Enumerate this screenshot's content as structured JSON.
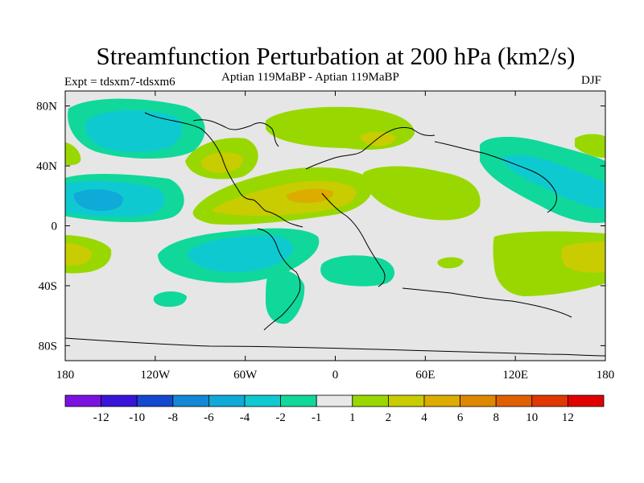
{
  "header": {
    "title": "Streamfunction Perturbation at 200 hPa (km2/s)",
    "experiment": "Expt = tdsxm7-tdsxm6",
    "period": "Aptian   119MaBP - Aptian   119MaBP",
    "season": "DJF"
  },
  "map": {
    "projection": "cylindrical equidistant",
    "lon_range": [
      -180,
      180
    ],
    "lat_range": [
      -90,
      90
    ],
    "lat_ticks": [
      {
        "value": 80,
        "label": "80N"
      },
      {
        "value": 40,
        "label": "40N"
      },
      {
        "value": 0,
        "label": "0"
      },
      {
        "value": -40,
        "label": "40S"
      },
      {
        "value": -80,
        "label": "80S"
      }
    ],
    "lon_ticks": [
      {
        "value": -180,
        "label": "180"
      },
      {
        "value": -120,
        "label": "120W"
      },
      {
        "value": -60,
        "label": "60W"
      },
      {
        "value": 0,
        "label": "0"
      },
      {
        "value": 60,
        "label": "60E"
      },
      {
        "value": 120,
        "label": "120E"
      },
      {
        "value": 180,
        "label": "180"
      }
    ],
    "background_color": "#e6e6e6"
  },
  "colorbar": {
    "colors": [
      "#7a12e0",
      "#3a14d8",
      "#1548d0",
      "#1288d6",
      "#10aad8",
      "#0ecad0",
      "#10d89a",
      "#e8e8e8",
      "#98d800",
      "#c8cc00",
      "#dcac00",
      "#de8800",
      "#e06000",
      "#e03800",
      "#e00000"
    ],
    "labels": [
      "-12",
      "-10",
      "-8",
      "-6",
      "-4",
      "-2",
      "-1",
      "1",
      "2",
      "4",
      "6",
      "8",
      "10",
      "12"
    ]
  }
}
